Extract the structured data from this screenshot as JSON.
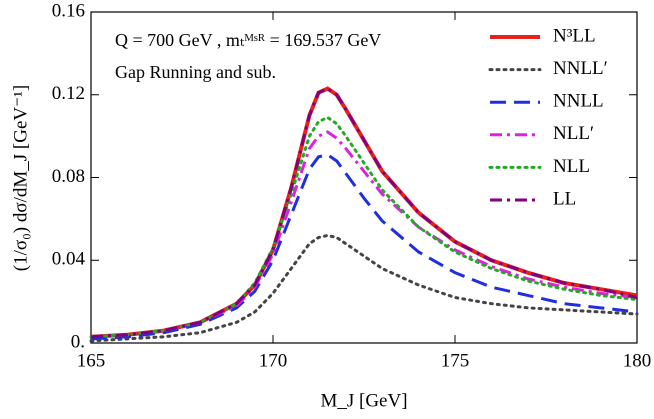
{
  "chart_data": {
    "type": "line",
    "annotations": [
      "Q = 700 GeV ,  mₜᴹˢᴿ = 169.537 GeV",
      "Gap Running and sub."
    ],
    "x_label": "M_J [GeV]",
    "y_label": "(1/σ₀) dσ/dM_J [GeV⁻¹]",
    "x": [
      165,
      166,
      167,
      168,
      169,
      169.5,
      170,
      170.5,
      171,
      171.25,
      171.5,
      171.75,
      172,
      172.5,
      173,
      174,
      175,
      176,
      177,
      178,
      179,
      180
    ],
    "xlim": [
      165,
      180
    ],
    "xticks": [
      165,
      170,
      175,
      180
    ],
    "ylim": [
      0,
      0.16
    ],
    "yticks": [
      {
        "value": 0,
        "label": "0."
      },
      0.04,
      0.08,
      0.12,
      0.16
    ],
    "legend": "upper right",
    "series": [
      {
        "name": "N³LL",
        "color": "#e8221a",
        "dash": "solid",
        "values": [
          0.003,
          0.004,
          0.006,
          0.01,
          0.019,
          0.028,
          0.045,
          0.075,
          0.11,
          0.121,
          0.123,
          0.12,
          0.113,
          0.098,
          0.083,
          0.063,
          0.049,
          0.04,
          0.034,
          0.029,
          0.026,
          0.023
        ]
      },
      {
        "name": "NNLL′",
        "color": "#444444",
        "dash": "dotted",
        "values": [
          0.001,
          0.002,
          0.003,
          0.005,
          0.01,
          0.015,
          0.024,
          0.036,
          0.048,
          0.051,
          0.052,
          0.051,
          0.048,
          0.042,
          0.036,
          0.028,
          0.022,
          0.019,
          0.017,
          0.016,
          0.015,
          0.014
        ]
      },
      {
        "name": "NNLL",
        "color": "#1f2fdd",
        "dash": "dashed",
        "values": [
          0.002,
          0.003,
          0.005,
          0.009,
          0.017,
          0.025,
          0.04,
          0.062,
          0.084,
          0.09,
          0.091,
          0.088,
          0.082,
          0.07,
          0.059,
          0.044,
          0.034,
          0.027,
          0.023,
          0.019,
          0.017,
          0.015
        ]
      },
      {
        "name": "NLL′",
        "color": "#e020e0",
        "dash": "dashdot",
        "values": [
          0.003,
          0.004,
          0.006,
          0.01,
          0.018,
          0.027,
          0.043,
          0.068,
          0.094,
          0.1,
          0.102,
          0.099,
          0.094,
          0.083,
          0.072,
          0.056,
          0.045,
          0.037,
          0.031,
          0.027,
          0.024,
          0.022
        ]
      },
      {
        "name": "NLL",
        "color": "#22aa22",
        "dash": "dotted",
        "values": [
          0.003,
          0.004,
          0.006,
          0.01,
          0.019,
          0.029,
          0.046,
          0.072,
          0.1,
          0.107,
          0.109,
          0.106,
          0.1,
          0.087,
          0.074,
          0.056,
          0.044,
          0.036,
          0.03,
          0.026,
          0.023,
          0.021
        ]
      },
      {
        "name": "LL",
        "color": "#800080",
        "dash": "dashdot",
        "values": [
          0.003,
          0.004,
          0.006,
          0.01,
          0.019,
          0.028,
          0.045,
          0.075,
          0.11,
          0.121,
          0.123,
          0.12,
          0.113,
          0.098,
          0.083,
          0.063,
          0.049,
          0.04,
          0.034,
          0.029,
          0.026,
          0.022
        ]
      }
    ]
  }
}
